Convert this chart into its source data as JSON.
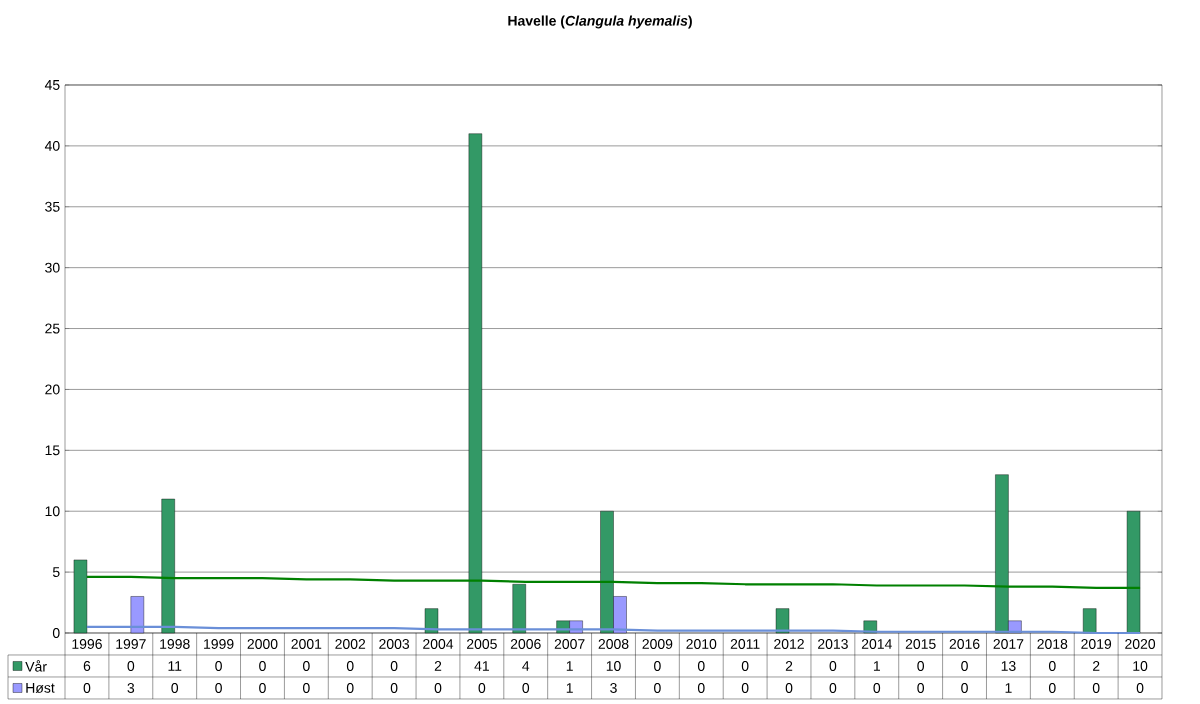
{
  "chart_data": {
    "type": "bar",
    "title": "Havelle (*Clangula hyemalis*)",
    "categories": [
      "1996",
      "1997",
      "1998",
      "1999",
      "2000",
      "2001",
      "2002",
      "2003",
      "2004",
      "2005",
      "2006",
      "2007",
      "2008",
      "2009",
      "2010",
      "2011",
      "2012",
      "2013",
      "2014",
      "2015",
      "2016",
      "2017",
      "2018",
      "2019",
      "2020"
    ],
    "series": [
      {
        "name": "Vår",
        "color": "#339966",
        "values": [
          6,
          0,
          11,
          0,
          0,
          0,
          0,
          0,
          2,
          41,
          4,
          1,
          10,
          0,
          0,
          0,
          2,
          0,
          1,
          0,
          0,
          13,
          0,
          2,
          10
        ],
        "value_labels": [
          "6",
          "0",
          "11",
          "0",
          "0",
          "0",
          "0",
          "0",
          "2",
          "41",
          "4",
          "1",
          "10",
          "0",
          "0",
          "0",
          "2",
          "0",
          "1",
          "0",
          "0",
          "13",
          "0",
          "2",
          "10"
        ]
      },
      {
        "name": "Høst",
        "color": "#9999ff",
        "values": [
          0,
          3,
          0,
          0,
          0,
          0,
          0,
          0,
          0,
          0,
          0,
          1,
          3,
          0,
          0,
          0,
          0,
          0,
          0,
          0,
          0,
          1,
          0,
          0,
          0
        ],
        "value_labels": [
          "0",
          "3",
          "0",
          "0",
          "0",
          "0",
          "0",
          "0",
          "0",
          "0",
          "0",
          "1",
          "3",
          "0",
          "0",
          "0",
          "0",
          "0",
          "0",
          "0",
          "0",
          "1",
          "0",
          "0",
          "0"
        ]
      },
      {
        "type": "line",
        "color": "#008000",
        "values": [
          4.6,
          4.6,
          4.5,
          4.5,
          4.5,
          4.4,
          4.4,
          4.3,
          4.3,
          4.3,
          4.2,
          4.2,
          4.2,
          4.1,
          4.1,
          4.0,
          4.0,
          4.0,
          3.9,
          3.9,
          3.9,
          3.8,
          3.8,
          3.7,
          3.7
        ]
      },
      {
        "type": "line",
        "color": "#6a8fd8",
        "values": [
          0.5,
          0.5,
          0.5,
          0.4,
          0.4,
          0.4,
          0.4,
          0.4,
          0.3,
          0.3,
          0.3,
          0.3,
          0.3,
          0.2,
          0.2,
          0.2,
          0.2,
          0.2,
          0.1,
          0.1,
          0.1,
          0.1,
          0.1,
          0.0,
          0.0
        ]
      }
    ],
    "ylim": [
      0,
      45
    ],
    "yticks": [
      0,
      5,
      10,
      15,
      20,
      25,
      30,
      35,
      40,
      45
    ],
    "grid": "y",
    "legend": "bottom"
  }
}
